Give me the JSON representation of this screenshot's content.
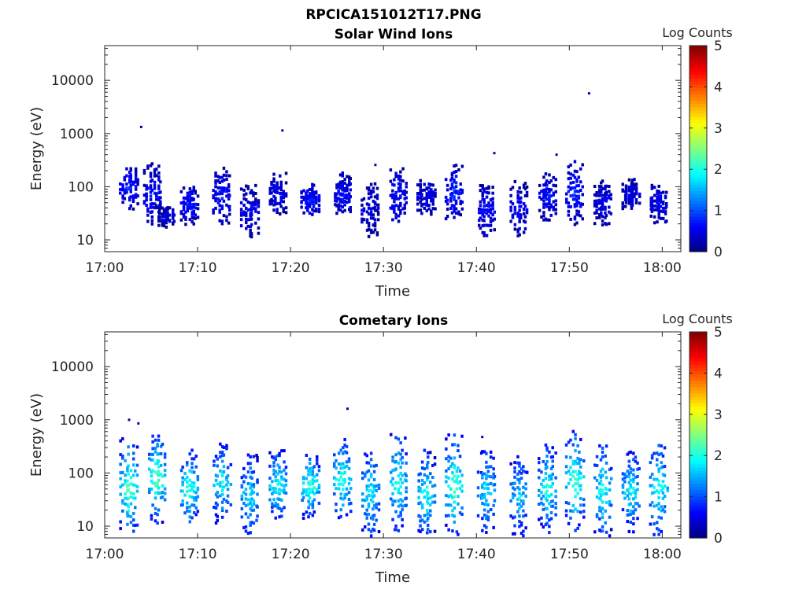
{
  "figure": {
    "title": "RPCICA151012T17.PNG"
  },
  "colorbar": {
    "label": "Log Counts",
    "ticks": [
      "0",
      "1",
      "2",
      "3",
      "4",
      "5"
    ],
    "range": [
      0,
      5
    ],
    "colormap": "jet"
  },
  "chart_data": [
    {
      "type": "heatmap",
      "title": "Solar Wind Ions",
      "xlabel": "Time",
      "ylabel": "Energy (eV)",
      "xticks": [
        "17:00",
        "17:10",
        "17:20",
        "17:30",
        "17:40",
        "17:50",
        "18:00"
      ],
      "yticks": [
        "10",
        "100",
        "1000",
        "10000"
      ],
      "xlim": [
        "17:00",
        "18:02"
      ],
      "ylim": [
        6,
        45000
      ],
      "yscale": "log",
      "zlabel": "Log Counts",
      "zlim": [
        0,
        5
      ],
      "bursts": [
        {
          "t": "17:02.5",
          "e": [
            40,
            250
          ],
          "level": 0.7
        },
        {
          "t": "17:05.0",
          "e": [
            20,
            300
          ],
          "level": 0.6
        },
        {
          "t": "17:06.5",
          "e": [
            18,
            50
          ],
          "level": 0.4
        },
        {
          "t": "17:09.0",
          "e": [
            20,
            120
          ],
          "level": 0.6
        },
        {
          "t": "17:12.5",
          "e": [
            20,
            250
          ],
          "level": 0.6
        },
        {
          "t": "17:15.5",
          "e": [
            12,
            120
          ],
          "level": 0.5
        },
        {
          "t": "17:18.5",
          "e": [
            30,
            200
          ],
          "level": 0.5
        },
        {
          "t": "17:22.0",
          "e": [
            30,
            120
          ],
          "level": 0.7
        },
        {
          "t": "17:25.5",
          "e": [
            30,
            200
          ],
          "level": 0.6
        },
        {
          "t": "17:28.5",
          "e": [
            12,
            130
          ],
          "level": 0.4
        },
        {
          "t": "17:31.5",
          "e": [
            20,
            250
          ],
          "level": 0.6
        },
        {
          "t": "17:34.5",
          "e": [
            30,
            150
          ],
          "level": 0.5
        },
        {
          "t": "17:37.5",
          "e": [
            25,
            300
          ],
          "level": 0.7
        },
        {
          "t": "17:41.0",
          "e": [
            12,
            120
          ],
          "level": 0.6
        },
        {
          "t": "17:44.5",
          "e": [
            12,
            150
          ],
          "level": 0.5
        },
        {
          "t": "17:47.5",
          "e": [
            25,
            200
          ],
          "level": 0.6
        },
        {
          "t": "17:50.5",
          "e": [
            20,
            350
          ],
          "level": 0.7
        },
        {
          "t": "17:53.5",
          "e": [
            20,
            150
          ],
          "level": 0.5
        },
        {
          "t": "17:56.5",
          "e": [
            40,
            150
          ],
          "level": 0.5
        },
        {
          "t": "17:59.5",
          "e": [
            20,
            120
          ],
          "level": 0.5
        }
      ],
      "isolated_points": [
        {
          "t": "17:03.8",
          "e": 1400
        },
        {
          "t": "17:19.0",
          "e": 1200
        },
        {
          "t": "17:41.8",
          "e": 450
        },
        {
          "t": "17:48.5",
          "e": 420
        },
        {
          "t": "17:52.0",
          "e": 6000
        },
        {
          "t": "17:29.0",
          "e": 270
        }
      ]
    },
    {
      "type": "heatmap",
      "title": "Cometary Ions",
      "xlabel": "Time",
      "ylabel": "Energy (eV)",
      "xticks": [
        "17:00",
        "17:10",
        "17:20",
        "17:30",
        "17:40",
        "17:50",
        "18:00"
      ],
      "yticks": [
        "10",
        "100",
        "1000",
        "10000"
      ],
      "xlim": [
        "17:00",
        "18:02"
      ],
      "ylim": [
        6,
        45000
      ],
      "yscale": "log",
      "zlabel": "Log Counts",
      "zlim": [
        0,
        5
      ],
      "bursts": [
        {
          "t": "17:02.5",
          "e": [
            6,
            500
          ],
          "level": 2.0
        },
        {
          "t": "17:05.5",
          "e": [
            12,
            600
          ],
          "level": 2.1
        },
        {
          "t": "17:09.0",
          "e": [
            10,
            300
          ],
          "level": 1.9
        },
        {
          "t": "17:12.5",
          "e": [
            12,
            400
          ],
          "level": 1.7
        },
        {
          "t": "17:15.5",
          "e": [
            6,
            250
          ],
          "level": 1.6
        },
        {
          "t": "17:18.5",
          "e": [
            12,
            300
          ],
          "level": 1.8
        },
        {
          "t": "17:22.0",
          "e": [
            15,
            250
          ],
          "level": 1.9
        },
        {
          "t": "17:25.5",
          "e": [
            12,
            500
          ],
          "level": 1.9
        },
        {
          "t": "17:28.5",
          "e": [
            6,
            350
          ],
          "level": 1.7
        },
        {
          "t": "17:31.5",
          "e": [
            8,
            600
          ],
          "level": 1.8
        },
        {
          "t": "17:34.5",
          "e": [
            6,
            300
          ],
          "level": 1.8
        },
        {
          "t": "17:37.5",
          "e": [
            6,
            600
          ],
          "level": 2.0
        },
        {
          "t": "17:41.0",
          "e": [
            8,
            300
          ],
          "level": 1.6
        },
        {
          "t": "17:44.5",
          "e": [
            6,
            250
          ],
          "level": 1.5
        },
        {
          "t": "17:47.5",
          "e": [
            8,
            400
          ],
          "level": 1.8
        },
        {
          "t": "17:50.5",
          "e": [
            8,
            700
          ],
          "level": 2.0
        },
        {
          "t": "17:53.5",
          "e": [
            6,
            400
          ],
          "level": 1.8
        },
        {
          "t": "17:56.5",
          "e": [
            8,
            300
          ],
          "level": 1.7
        },
        {
          "t": "17:59.5",
          "e": [
            6,
            500
          ],
          "level": 1.8
        }
      ],
      "isolated_points": [
        {
          "t": "17:02.5",
          "e": 1050
        },
        {
          "t": "17:03.5",
          "e": 900
        },
        {
          "t": "17:26.0",
          "e": 1700
        },
        {
          "t": "17:40.5",
          "e": 500
        }
      ]
    }
  ]
}
